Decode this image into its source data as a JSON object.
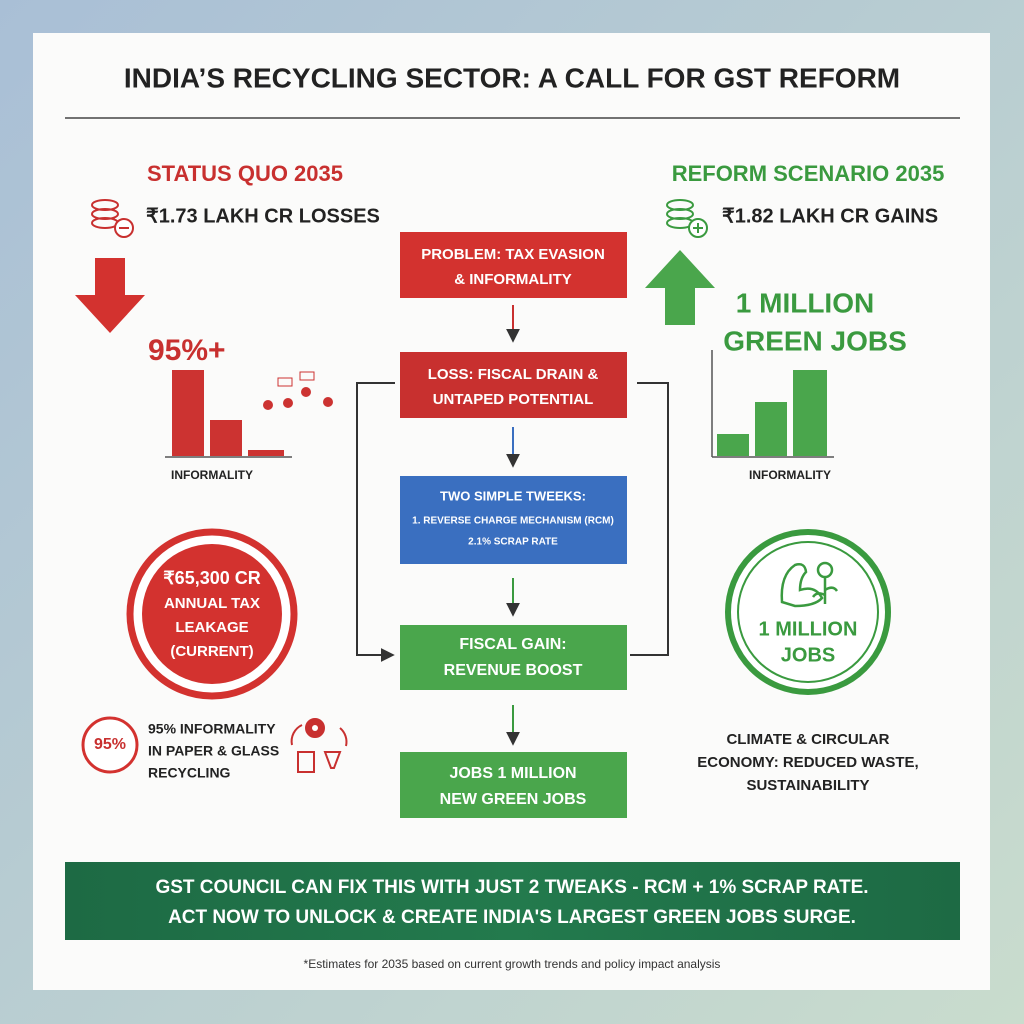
{
  "header": {
    "title": "INDIA’S RECYCLING SECTOR: A CALL FOR GST REFORM"
  },
  "left": {
    "heading": "STATUS QUO 2035",
    "amount": "₹1.73 LAKH CR LOSSES",
    "big_stat": "95%+",
    "chart_label": "INFORMALITY",
    "circle_lines": [
      "₹65,300 CR",
      "ANNUAL TAX",
      "LEAKAGE",
      "(CURRENT)"
    ],
    "badge": "95%",
    "note_lines": [
      "95% INFORMALITY",
      "IN PAPER & GLASS",
      "RECYCLING"
    ]
  },
  "right": {
    "heading": "REFORM SCENARIO 2035",
    "amount": "₹1.82 LAKH CR GAINS",
    "big_stat_lines": [
      "1 MILLION",
      "GREEN JOBS"
    ],
    "chart_label": "INFORMALITY",
    "circle_lines": [
      "1 MILLION",
      "JOBS"
    ],
    "note_lines": [
      "CLIMATE & CIRCULAR",
      "ECONOMY: REDUCED WASTE,",
      "SUSTAINABILITY"
    ]
  },
  "flow": {
    "boxes": [
      {
        "lines": [
          "PROBLEM: TAX EVASION",
          "& INFORMALITY"
        ]
      },
      {
        "lines": [
          "LOSS: FISCAL DRAIN &",
          "UNTAPED POTENTIAL"
        ]
      },
      {
        "lines": [
          "TWO SIMPLE TWEEKS:",
          "1. REVERSE CHARGE MECHANISM (RCM)",
          "2.1% SCRAP RATE"
        ]
      },
      {
        "lines": [
          "FISCAL GAIN:",
          "REVENUE BOOST"
        ]
      },
      {
        "lines": [
          "JOBS 1 MILLION",
          "NEW GREEN JOBS"
        ]
      }
    ]
  },
  "banner": {
    "lines": [
      "GST COUNCIL CAN FIX THIS WITH JUST 2 TWEAKS - RCM + 1% SCRAP RATE.",
      "ACT NOW TO UNLOCK & CREATE INDIA'S LARGEST GREEN JOBS SURGE."
    ]
  },
  "footnote": "*Estimates for 2035 based on current growth trends and policy impact analysis"
}
